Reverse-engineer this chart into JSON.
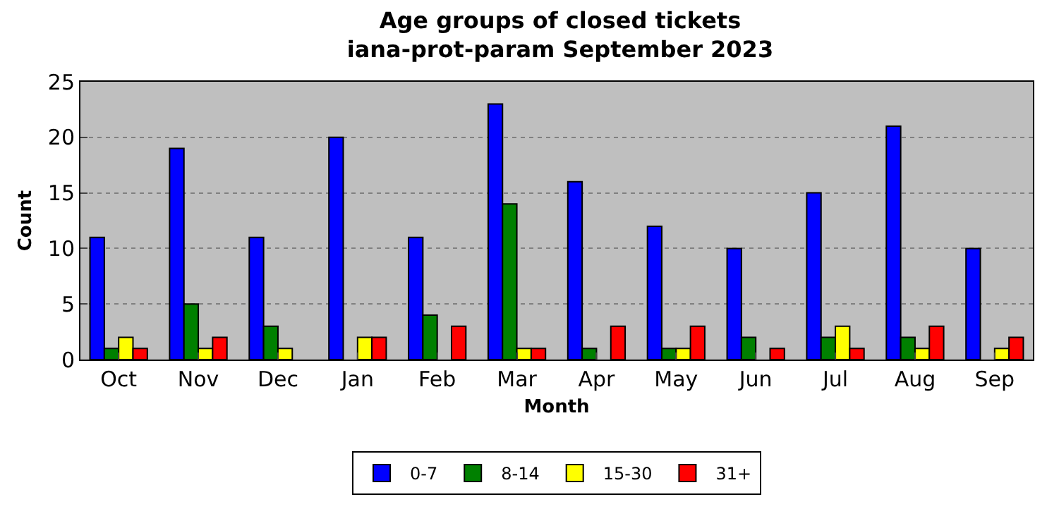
{
  "chart_data": {
    "type": "bar",
    "title": "Age groups of closed tickets\niana-prot-param September 2023",
    "xlabel": "Month",
    "ylabel": "Count",
    "categories": [
      "Oct",
      "Nov",
      "Dec",
      "Jan",
      "Feb",
      "Mar",
      "Apr",
      "May",
      "Jun",
      "Jul",
      "Aug",
      "Sep"
    ],
    "series": [
      {
        "name": "0-7",
        "color": "#0000ff",
        "values": [
          11,
          19,
          11,
          20,
          11,
          23,
          16,
          12,
          10,
          15,
          21,
          10
        ]
      },
      {
        "name": "8-14",
        "color": "#008000",
        "values": [
          1,
          5,
          3,
          0,
          4,
          14,
          1,
          1,
          2,
          2,
          2,
          0
        ]
      },
      {
        "name": "15-30",
        "color": "#ffff00",
        "values": [
          2,
          1,
          1,
          2,
          0,
          1,
          0,
          1,
          0,
          3,
          1,
          1
        ]
      },
      {
        "name": "31+",
        "color": "#ff0000",
        "values": [
          1,
          2,
          0,
          2,
          3,
          1,
          3,
          3,
          1,
          1,
          3,
          2
        ]
      }
    ],
    "ylim": [
      0,
      25
    ],
    "yticks": [
      0,
      5,
      10,
      15,
      20,
      25
    ],
    "grid": "y",
    "legend": "bottom"
  }
}
